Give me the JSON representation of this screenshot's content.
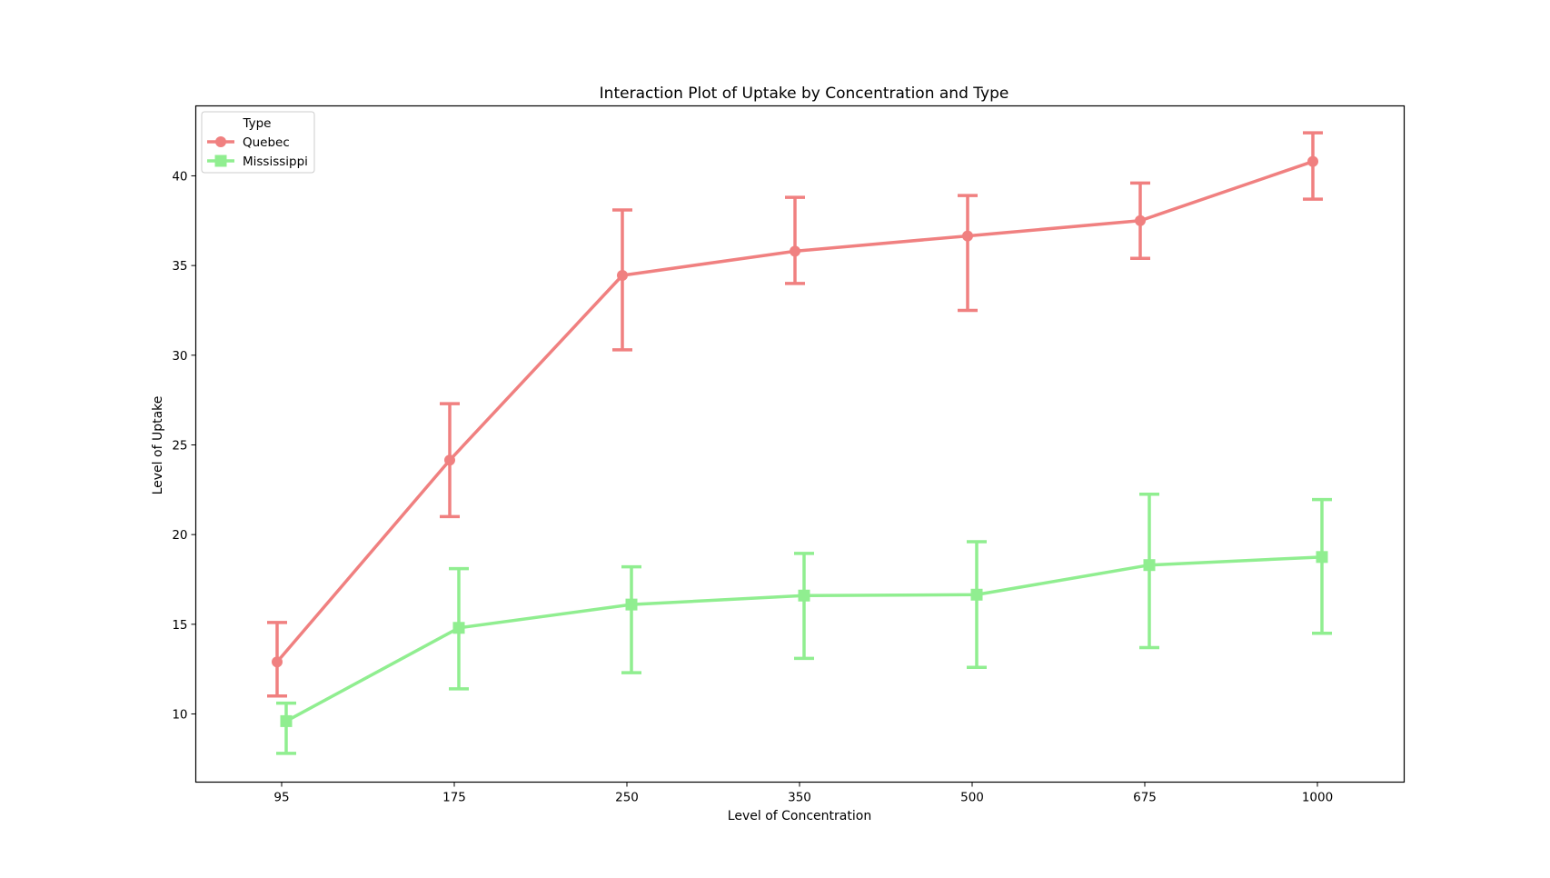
{
  "chart_data": {
    "type": "line",
    "title": "Interaction Plot of Uptake by Concentration and Type",
    "xlabel": "Level of Concentration",
    "ylabel": "Level of Uptake",
    "categories": [
      "95",
      "175",
      "250",
      "350",
      "500",
      "675",
      "1000"
    ],
    "yticks": [
      10,
      15,
      20,
      25,
      30,
      35,
      40
    ],
    "ylim": [
      6.2,
      43.9
    ],
    "grid": false,
    "legend": {
      "title": "Type",
      "placement": "top-left"
    },
    "series": [
      {
        "name": "Quebec",
        "color": "#f08080",
        "marker": "circle",
        "values": [
          12.9,
          24.15,
          34.45,
          35.8,
          36.65,
          37.5,
          40.8
        ],
        "err_low": [
          11.0,
          21.0,
          30.3,
          34.0,
          32.5,
          35.4,
          38.7
        ],
        "err_high": [
          15.1,
          27.3,
          38.1,
          38.8,
          38.9,
          39.6,
          42.4
        ]
      },
      {
        "name": "Mississippi",
        "color": "#90ee90",
        "marker": "square",
        "values": [
          9.6,
          14.8,
          16.1,
          16.6,
          16.65,
          18.3,
          18.75
        ],
        "err_low": [
          7.8,
          11.4,
          12.3,
          13.1,
          12.6,
          13.7,
          14.5
        ],
        "err_high": [
          10.6,
          18.1,
          18.2,
          18.95,
          19.6,
          22.25,
          21.95
        ]
      }
    ]
  }
}
